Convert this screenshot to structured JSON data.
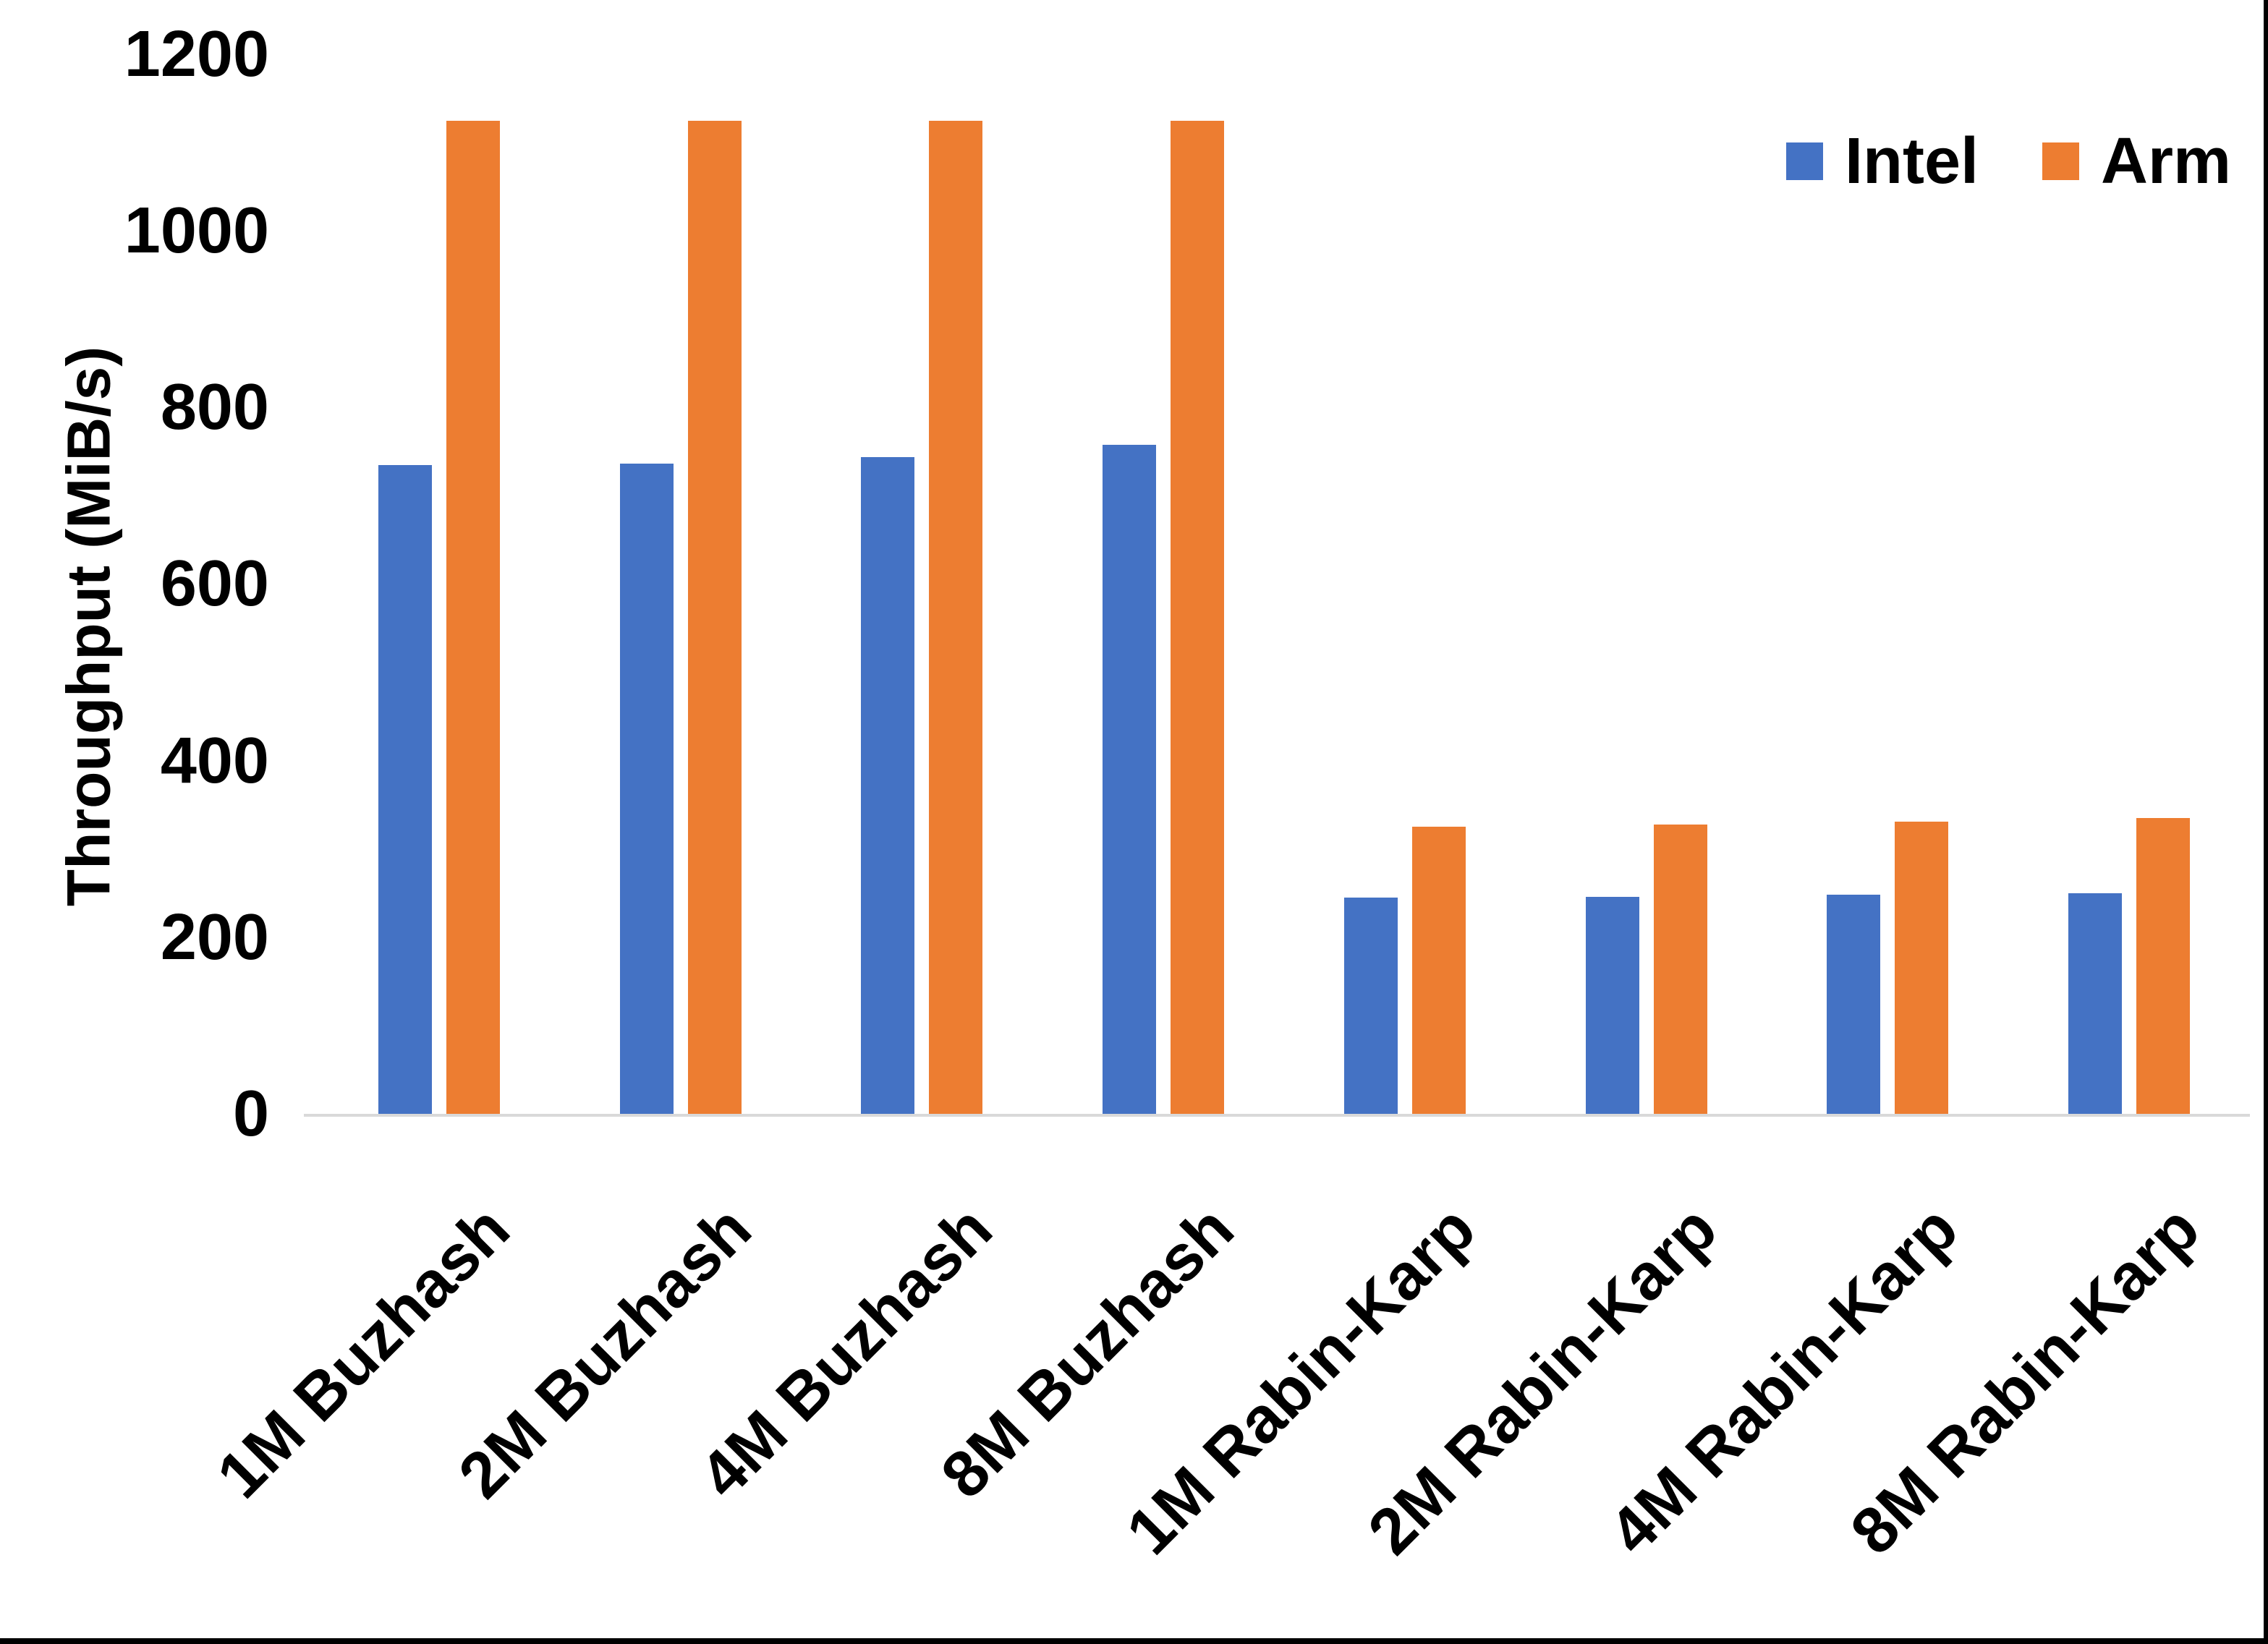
{
  "chart_data": {
    "type": "bar",
    "title": "",
    "xlabel": "",
    "ylabel": "Throughput (MiB/s)",
    "ylim": [
      0,
      1200
    ],
    "yticks": [
      0,
      200,
      400,
      600,
      800,
      1000,
      1200
    ],
    "grid": false,
    "legend_position": "top-right",
    "categories": [
      "1M Buzhash",
      "2M Buzhash",
      "4M Buzhash",
      "8M Buzhash",
      "1M Rabin-Karp",
      "2M Rabin-Karp",
      "4M Rabin-Karp",
      "8M Rabin-Karp"
    ],
    "series": [
      {
        "name": "Intel",
        "color": "#4472C4",
        "values": [
          735,
          736,
          744,
          758,
          245,
          246,
          248,
          250
        ]
      },
      {
        "name": "Arm",
        "color": "#ED7D31",
        "values": [
          1125,
          1125,
          1125,
          1125,
          325,
          328,
          331,
          335
        ]
      }
    ],
    "colors": {
      "axis_line": "#d9d9d9",
      "frame": "#000000",
      "text": "#000000"
    }
  }
}
